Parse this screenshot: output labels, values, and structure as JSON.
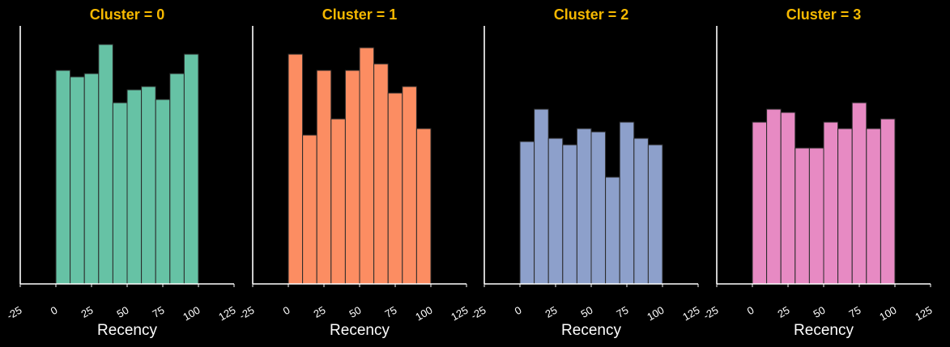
{
  "colors": {
    "background": "#000000",
    "title": "#f5b800",
    "axis": "#ffffff",
    "bar_edge": "#2a2a2a"
  },
  "chart_data": [
    {
      "type": "bar",
      "title": "Cluster = 0",
      "xlabel": "Recency",
      "ylabel": "",
      "xlim": [
        -25,
        125
      ],
      "ylim": [
        0,
        40
      ],
      "xticks": [
        "-25",
        "0",
        "25",
        "50",
        "75",
        "100",
        "125"
      ],
      "bin_edges": [
        0,
        10,
        20,
        30,
        40,
        50,
        60,
        70,
        80,
        90,
        100
      ],
      "values": [
        33,
        32,
        32.5,
        37,
        28,
        30,
        30.5,
        28.5,
        32.5,
        35.5
      ],
      "color": "#66c2a5"
    },
    {
      "type": "bar",
      "title": "Cluster = 1",
      "xlabel": "Recency",
      "ylabel": "",
      "xlim": [
        -25,
        125
      ],
      "ylim": [
        0,
        40
      ],
      "xticks": [
        "-25",
        "0",
        "25",
        "50",
        "75",
        "100",
        "125"
      ],
      "bin_edges": [
        0,
        10,
        20,
        30,
        40,
        50,
        60,
        70,
        80,
        90,
        100
      ],
      "values": [
        35.5,
        23,
        33,
        25.5,
        33,
        36.5,
        34,
        29.5,
        30.5,
        24
      ],
      "color": "#fc8d62"
    },
    {
      "type": "bar",
      "title": "Cluster = 2",
      "xlabel": "Recency",
      "ylabel": "",
      "xlim": [
        -25,
        125
      ],
      "ylim": [
        0,
        40
      ],
      "xticks": [
        "-25",
        "0",
        "25",
        "50",
        "75",
        "100",
        "125"
      ],
      "bin_edges": [
        0,
        10,
        20,
        30,
        40,
        50,
        60,
        70,
        80,
        90,
        100
      ],
      "values": [
        22,
        27,
        22.5,
        21.5,
        24,
        23.5,
        16.5,
        25,
        22.5,
        21.5
      ],
      "color": "#8da0cb"
    },
    {
      "type": "bar",
      "title": "Cluster = 3",
      "xlabel": "Recency",
      "ylabel": "",
      "xlim": [
        -25,
        125
      ],
      "ylim": [
        0,
        40
      ],
      "xticks": [
        "-25",
        "0",
        "25",
        "50",
        "75",
        "100",
        "125"
      ],
      "bin_edges": [
        0,
        10,
        20,
        30,
        40,
        50,
        60,
        70,
        80,
        90,
        100
      ],
      "values": [
        25,
        27,
        26.5,
        21,
        21,
        25,
        24,
        28,
        24,
        25.5
      ],
      "color": "#e78ac3"
    }
  ]
}
